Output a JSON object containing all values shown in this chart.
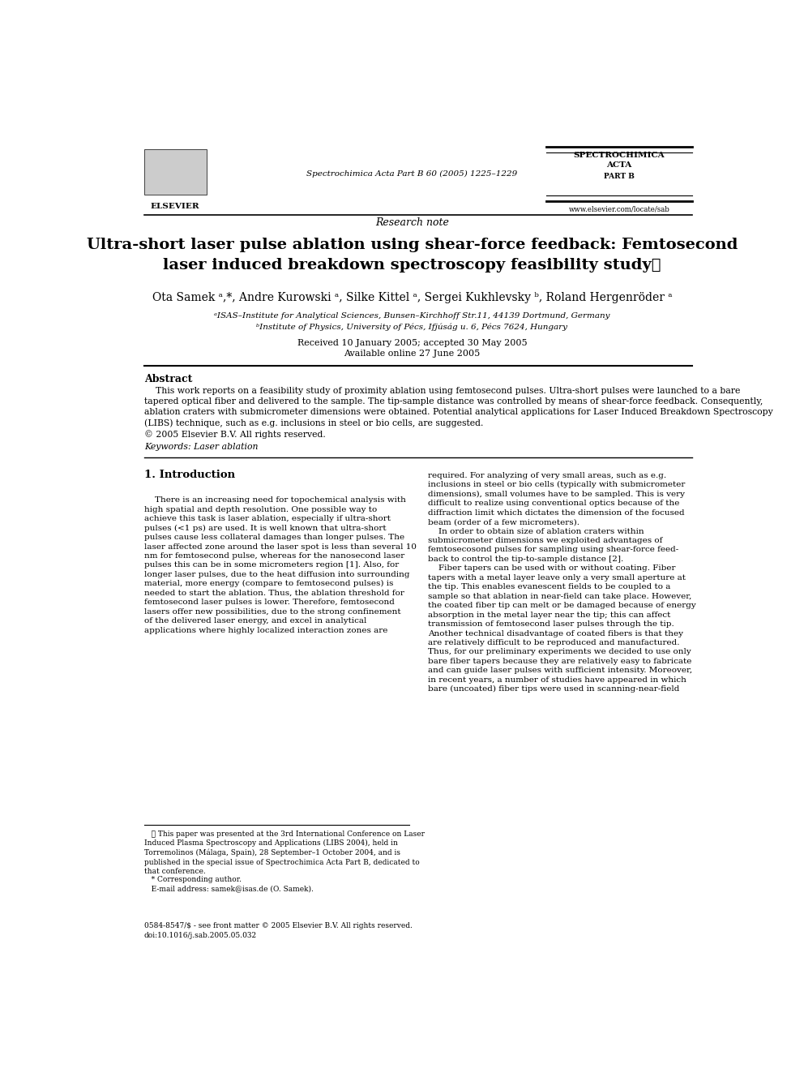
{
  "page_width": 9.92,
  "page_height": 13.23,
  "bg_color": "#ffffff",
  "journal_url": "www.elsevier.com/locate/sab",
  "journal_citation": "Spectrochimica Acta Part B 60 (2005) 1225–1229",
  "article_type": "Research note",
  "title": "Ultra-short laser pulse ablation using shear-force feedback: Femtosecond\nlaser induced breakdown spectroscopy feasibility study⋆",
  "authors": "Ota Samek ᵃ,*, Andre Kurowski ᵃ, Silke Kittel ᵃ, Sergei Kukhlevsky ᵇ, Roland Hergenröder ᵃ",
  "affil_a": "ᵃISAS–Institute for Analytical Sciences, Bunsen–Kirchhoff Str.11, 44139 Dortmund, Germany",
  "affil_b": "ᵇInstitute of Physics, University of Pécs, Ifjúság u. 6, Pécs 7624, Hungary",
  "received": "Received 10 January 2005; accepted 30 May 2005",
  "online": "Available online 27 June 2005",
  "abstract_title": "Abstract",
  "abstract_text": "    This work reports on a feasibility study of proximity ablation using femtosecond pulses. Ultra-short pulses were launched to a bare\ntapered optical fiber and delivered to the sample. The tip-sample distance was controlled by means of shear-force feedback. Consequently,\nablation craters with submicrometer dimensions were obtained. Potential analytical applications for Laser Induced Breakdown Spectroscopy\n(LIBS) technique, such as e.g. inclusions in steel or bio cells, are suggested.\n© 2005 Elsevier B.V. All rights reserved.",
  "keywords": "Keywords: Laser ablation",
  "section1_title": "1. Introduction",
  "section1_col1": "    There is an increasing need for topochemical analysis with\nhigh spatial and depth resolution. One possible way to\nachieve this task is laser ablation, especially if ultra-short\npulses (<1 ps) are used. It is well known that ultra-short\npulses cause less collateral damages than longer pulses. The\nlaser affected zone around the laser spot is less than several 10\nnm for femtosecond pulse, whereas for the nanosecond laser\npulses this can be in some micrometers region [1]. Also, for\nlonger laser pulses, due to the heat diffusion into surrounding\nmaterial, more energy (compare to femtosecond pulses) is\nneeded to start the ablation. Thus, the ablation threshold for\nfemtosecond laser pulses is lower. Therefore, femtosecond\nlasers offer new possibilities, due to the strong confinement\nof the delivered laser energy, and excel in analytical\napplications where highly localized interaction zones are",
  "section1_col2": "required. For analyzing of very small areas, such as e.g.\ninclusions in steel or bio cells (typically with submicrometer\ndimensions), small volumes have to be sampled. This is very\ndifficult to realize using conventional optics because of the\ndiffraction limit which dictates the dimension of the focused\nbeam (order of a few micrometers).\n    In order to obtain size of ablation craters within\nsubmicrometer dimensions we exploited advantages of\nfemtosecosond pulses for sampling using shear-force feed-\nback to control the tip-to-sample distance [2].\n    Fiber tapers can be used with or without coating. Fiber\ntapers with a metal layer leave only a very small aperture at\nthe tip. This enables evanescent fields to be coupled to a\nsample so that ablation in near-field can take place. However,\nthe coated fiber tip can melt or be damaged because of energy\nabsorption in the metal layer near the tip; this can affect\ntransmission of femtosecond laser pulses through the tip.\nAnother technical disadvantage of coated fibers is that they\nare relatively difficult to be reproduced and manufactured.\nThus, for our preliminary experiments we decided to use only\nbare fiber tapers because they are relatively easy to fabricate\nand can guide laser pulses with sufficient intensity. Moreover,\nin recent years, a number of studies have appeared in which\nbare (uncoated) fiber tips were used in scanning-near-field",
  "footnote_star": "   ⋆ This paper was presented at the 3rd International Conference on Laser\nInduced Plasma Spectroscopy and Applications (LIBS 2004), held in\nTorremolinos (Málaga, Spain), 28 September–1 October 2004, and is\npublished in the special issue of Spectrochimica Acta Part B, dedicated to\nthat conference.",
  "footnote_corr": "   * Corresponding author.\n   E-mail address: samek@isas.de (O. Samek).",
  "footnote_issn": "0584-8547/$ - see front matter © 2005 Elsevier B.V. All rights reserved.\ndoi:10.1016/j.sab.2005.05.032"
}
